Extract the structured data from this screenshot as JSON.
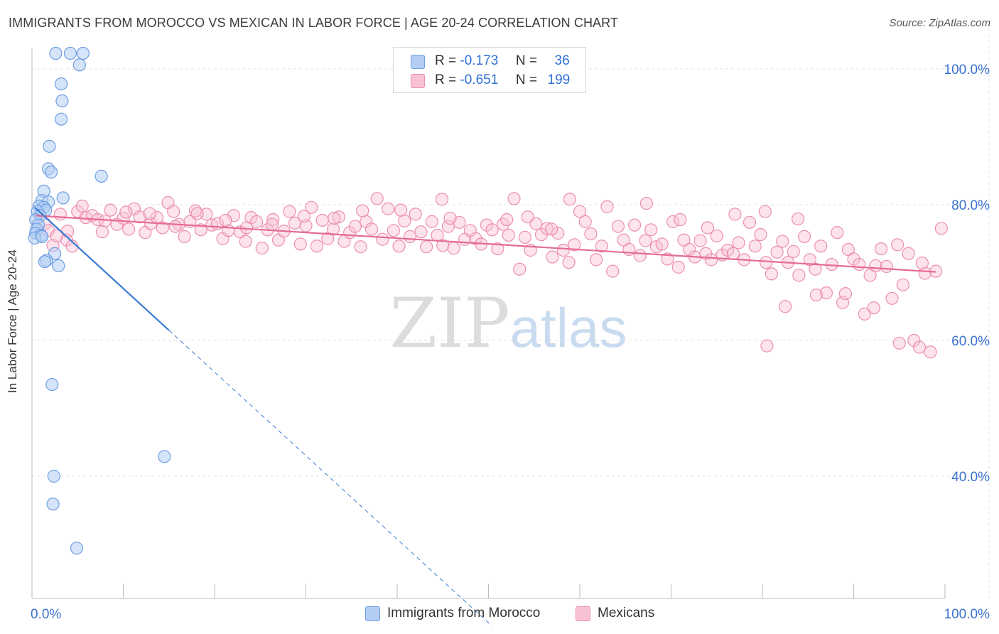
{
  "title": "IMMIGRANTS FROM MOROCCO VS MEXICAN IN LABOR FORCE | AGE 20-24 CORRELATION CHART",
  "source": "Source: ZipAtlas.com",
  "watermark": {
    "zip": "ZIP",
    "atlas": "atlas"
  },
  "legend": {
    "r_label": "R =",
    "n_label": "N =",
    "rows": [
      {
        "r": "-0.173",
        "n": "36",
        "fill": "#b3cdf3",
        "stroke": "#6e9fe3"
      },
      {
        "r": "-0.651",
        "n": "199",
        "fill": "#f9c2d4",
        "stroke": "#ec8fb0"
      }
    ]
  },
  "bottom_legend": [
    {
      "label": "Immigrants from Morocco",
      "fill": "#b3cdf3",
      "stroke": "#6e9fe3"
    },
    {
      "label": "Mexicans",
      "fill": "#f9c2d4",
      "stroke": "#ec8fb0"
    }
  ],
  "chart_data": {
    "type": "scatter",
    "xlabel": "",
    "ylabel": "In Labor Force | Age 20-24",
    "x_tick_labels": [
      "0.0%",
      "100.0%"
    ],
    "y_tick_labels": [
      "100.0%",
      "80.0%",
      "60.0%",
      "40.0%"
    ],
    "y_ticks": [
      100,
      80,
      60,
      40
    ],
    "xlim": [
      0,
      100
    ],
    "ylim": [
      22,
      106
    ],
    "grid": true,
    "colors": {
      "blue": "#3a7bd5",
      "pink": "#e56b98",
      "tick_text": "#3a72d0"
    },
    "series": [
      {
        "name": "Immigrants from Morocco",
        "color": "#6e9fe3",
        "fill": "#b3cdf3",
        "points": [
          [
            2.6,
            102.3
          ],
          [
            4.2,
            102.3
          ],
          [
            5.6,
            102.3
          ],
          [
            5.2,
            100.6
          ],
          [
            3.2,
            97.8
          ],
          [
            3.3,
            95.3
          ],
          [
            3.2,
            92.6
          ],
          [
            1.9,
            88.6
          ],
          [
            1.8,
            85.3
          ],
          [
            2.1,
            84.8
          ],
          [
            7.6,
            84.2
          ],
          [
            1.3,
            82.0
          ],
          [
            3.4,
            81.0
          ],
          [
            1.1,
            80.6
          ],
          [
            1.8,
            80.4
          ],
          [
            0.8,
            79.8
          ],
          [
            1.3,
            79.6
          ],
          [
            1.5,
            79.2
          ],
          [
            0.6,
            79.0
          ],
          [
            0.9,
            78.4
          ],
          [
            0.4,
            77.8
          ],
          [
            0.7,
            77.0
          ],
          [
            0.5,
            76.4
          ],
          [
            0.4,
            75.8
          ],
          [
            1.0,
            75.5
          ],
          [
            2.5,
            72.8
          ],
          [
            1.6,
            71.8
          ],
          [
            1.4,
            71.6
          ],
          [
            2.9,
            71.0
          ],
          [
            2.2,
            53.5
          ],
          [
            14.5,
            42.9
          ],
          [
            2.4,
            40.0
          ],
          [
            2.3,
            35.9
          ],
          [
            4.9,
            29.4
          ],
          [
            0.3,
            75.1
          ],
          [
            1.1,
            75.3
          ]
        ],
        "trend": {
          "x0": 0.3,
          "y0": 79.6,
          "x1": 15.0,
          "y1": 61.5,
          "x_dash_end": 50.4
        }
      },
      {
        "name": "Mexicans",
        "color": "#ec8fb0",
        "fill": "#f9c2d4",
        "trend": {
          "x0": 0.4,
          "y0": 78.4,
          "x1": 99.0,
          "y1": 70.1
        },
        "points": [
          [
            1.4,
            77.2
          ],
          [
            1.8,
            76.2
          ],
          [
            2.3,
            74.0
          ],
          [
            3.1,
            78.6
          ],
          [
            3.8,
            74.8
          ],
          [
            4.4,
            73.9
          ],
          [
            5.0,
            79.0
          ],
          [
            5.9,
            78.1
          ],
          [
            6.6,
            78.4
          ],
          [
            7.2,
            77.8
          ],
          [
            8.0,
            77.6
          ],
          [
            8.6,
            79.2
          ],
          [
            9.3,
            77.1
          ],
          [
            10.0,
            78.0
          ],
          [
            10.6,
            76.4
          ],
          [
            11.2,
            79.4
          ],
          [
            11.8,
            78.2
          ],
          [
            12.4,
            75.9
          ],
          [
            13.0,
            77.2
          ],
          [
            13.7,
            78.1
          ],
          [
            14.3,
            76.6
          ],
          [
            14.9,
            80.3
          ],
          [
            15.5,
            79.0
          ],
          [
            16.1,
            77.1
          ],
          [
            16.7,
            75.3
          ],
          [
            17.3,
            77.5
          ],
          [
            17.9,
            79.1
          ],
          [
            18.5,
            76.3
          ],
          [
            19.1,
            78.6
          ],
          [
            19.7,
            77.0
          ],
          [
            20.3,
            77.2
          ],
          [
            20.9,
            75.0
          ],
          [
            21.5,
            76.2
          ],
          [
            22.1,
            78.4
          ],
          [
            22.8,
            76.0
          ],
          [
            23.4,
            74.6
          ],
          [
            24.0,
            78.1
          ],
          [
            24.6,
            77.5
          ],
          [
            25.2,
            73.6
          ],
          [
            25.8,
            76.3
          ],
          [
            26.4,
            77.8
          ],
          [
            27.0,
            74.8
          ],
          [
            27.6,
            76.1
          ],
          [
            28.2,
            79.0
          ],
          [
            28.8,
            77.3
          ],
          [
            29.4,
            74.2
          ],
          [
            30.0,
            76.9
          ],
          [
            30.6,
            79.6
          ],
          [
            31.2,
            73.9
          ],
          [
            31.8,
            77.7
          ],
          [
            32.4,
            75.0
          ],
          [
            33.0,
            76.4
          ],
          [
            33.6,
            78.2
          ],
          [
            34.2,
            74.6
          ],
          [
            34.8,
            75.9
          ],
          [
            35.4,
            76.8
          ],
          [
            36.0,
            73.8
          ],
          [
            36.6,
            77.5
          ],
          [
            37.2,
            76.4
          ],
          [
            37.8,
            80.9
          ],
          [
            38.4,
            74.9
          ],
          [
            39.0,
            79.4
          ],
          [
            39.6,
            76.2
          ],
          [
            40.2,
            73.9
          ],
          [
            40.8,
            77.6
          ],
          [
            41.4,
            75.3
          ],
          [
            42.0,
            78.6
          ],
          [
            42.6,
            76.0
          ],
          [
            43.2,
            73.8
          ],
          [
            43.8,
            77.5
          ],
          [
            44.4,
            75.5
          ],
          [
            45.0,
            74.0
          ],
          [
            45.6,
            76.8
          ],
          [
            46.2,
            73.6
          ],
          [
            46.8,
            77.4
          ],
          [
            47.4,
            74.9
          ],
          [
            48.0,
            76.2
          ],
          [
            48.6,
            75.0
          ],
          [
            49.2,
            74.2
          ],
          [
            49.8,
            77.0
          ],
          [
            50.4,
            76.3
          ],
          [
            51.0,
            73.5
          ],
          [
            51.6,
            77.1
          ],
          [
            52.2,
            75.5
          ],
          [
            52.8,
            80.9
          ],
          [
            53.4,
            70.5
          ],
          [
            54.0,
            75.2
          ],
          [
            54.6,
            73.3
          ],
          [
            55.2,
            77.2
          ],
          [
            55.8,
            75.6
          ],
          [
            56.4,
            76.5
          ],
          [
            57.0,
            72.3
          ],
          [
            57.6,
            75.8
          ],
          [
            58.2,
            73.3
          ],
          [
            58.8,
            71.5
          ],
          [
            59.4,
            74.1
          ],
          [
            60.0,
            79.0
          ],
          [
            60.6,
            77.5
          ],
          [
            61.2,
            75.7
          ],
          [
            61.8,
            71.9
          ],
          [
            62.4,
            73.9
          ],
          [
            63.0,
            79.7
          ],
          [
            63.6,
            70.2
          ],
          [
            64.2,
            76.8
          ],
          [
            64.8,
            74.8
          ],
          [
            65.4,
            73.4
          ],
          [
            66.0,
            77.0
          ],
          [
            66.6,
            72.5
          ],
          [
            67.2,
            74.7
          ],
          [
            67.8,
            76.3
          ],
          [
            68.4,
            73.8
          ],
          [
            69.0,
            74.2
          ],
          [
            69.6,
            72.0
          ],
          [
            70.2,
            77.5
          ],
          [
            70.8,
            70.8
          ],
          [
            71.4,
            74.8
          ],
          [
            72.0,
            73.4
          ],
          [
            72.6,
            72.3
          ],
          [
            73.2,
            74.7
          ],
          [
            73.8,
            72.8
          ],
          [
            74.4,
            71.9
          ],
          [
            75.0,
            75.4
          ],
          [
            75.6,
            72.6
          ],
          [
            76.2,
            73.3
          ],
          [
            76.8,
            72.8
          ],
          [
            77.4,
            74.4
          ],
          [
            78.0,
            71.9
          ],
          [
            78.6,
            77.4
          ],
          [
            79.2,
            73.9
          ],
          [
            79.8,
            75.6
          ],
          [
            80.4,
            71.5
          ],
          [
            81.0,
            69.8
          ],
          [
            81.6,
            73.0
          ],
          [
            82.2,
            74.6
          ],
          [
            82.8,
            71.5
          ],
          [
            83.4,
            73.1
          ],
          [
            84.0,
            69.6
          ],
          [
            84.6,
            75.3
          ],
          [
            85.2,
            71.9
          ],
          [
            85.8,
            70.5
          ],
          [
            86.4,
            73.9
          ],
          [
            87.0,
            67.0
          ],
          [
            87.6,
            71.2
          ],
          [
            88.2,
            75.9
          ],
          [
            88.8,
            65.6
          ],
          [
            89.4,
            73.4
          ],
          [
            90.0,
            72.0
          ],
          [
            90.6,
            71.2
          ],
          [
            91.2,
            63.9
          ],
          [
            91.8,
            69.6
          ],
          [
            92.4,
            71.0
          ],
          [
            93.0,
            73.5
          ],
          [
            93.6,
            70.9
          ],
          [
            94.2,
            66.2
          ],
          [
            94.8,
            74.1
          ],
          [
            95.4,
            68.2
          ],
          [
            96.0,
            72.8
          ],
          [
            96.6,
            60.0
          ],
          [
            97.2,
            59.0
          ],
          [
            97.8,
            69.9
          ],
          [
            98.4,
            58.3
          ],
          [
            99.0,
            70.2
          ],
          [
            99.6,
            76.5
          ],
          [
            80.5,
            59.2
          ],
          [
            82.5,
            65.0
          ],
          [
            85.9,
            66.7
          ],
          [
            89.1,
            66.9
          ],
          [
            92.2,
            64.8
          ],
          [
            95.0,
            59.6
          ],
          [
            97.5,
            71.4
          ],
          [
            83.9,
            77.9
          ],
          [
            80.3,
            79.0
          ],
          [
            77.0,
            78.6
          ],
          [
            74.0,
            76.6
          ],
          [
            71.0,
            77.8
          ],
          [
            67.3,
            80.2
          ],
          [
            58.9,
            80.8
          ],
          [
            56.9,
            76.4
          ],
          [
            54.3,
            78.2
          ],
          [
            52.0,
            77.8
          ],
          [
            45.8,
            78.0
          ],
          [
            44.9,
            80.8
          ],
          [
            40.4,
            79.2
          ],
          [
            36.2,
            79.1
          ],
          [
            33.1,
            78.0
          ],
          [
            29.8,
            78.3
          ],
          [
            26.3,
            77.1
          ],
          [
            23.5,
            76.6
          ],
          [
            21.2,
            77.7
          ],
          [
            18.1,
            78.7
          ],
          [
            15.7,
            76.8
          ],
          [
            12.9,
            78.7
          ],
          [
            10.3,
            78.9
          ],
          [
            7.7,
            76.0
          ],
          [
            5.5,
            79.8
          ],
          [
            3.9,
            76.1
          ],
          [
            2.7,
            75.4
          ]
        ]
      }
    ]
  }
}
